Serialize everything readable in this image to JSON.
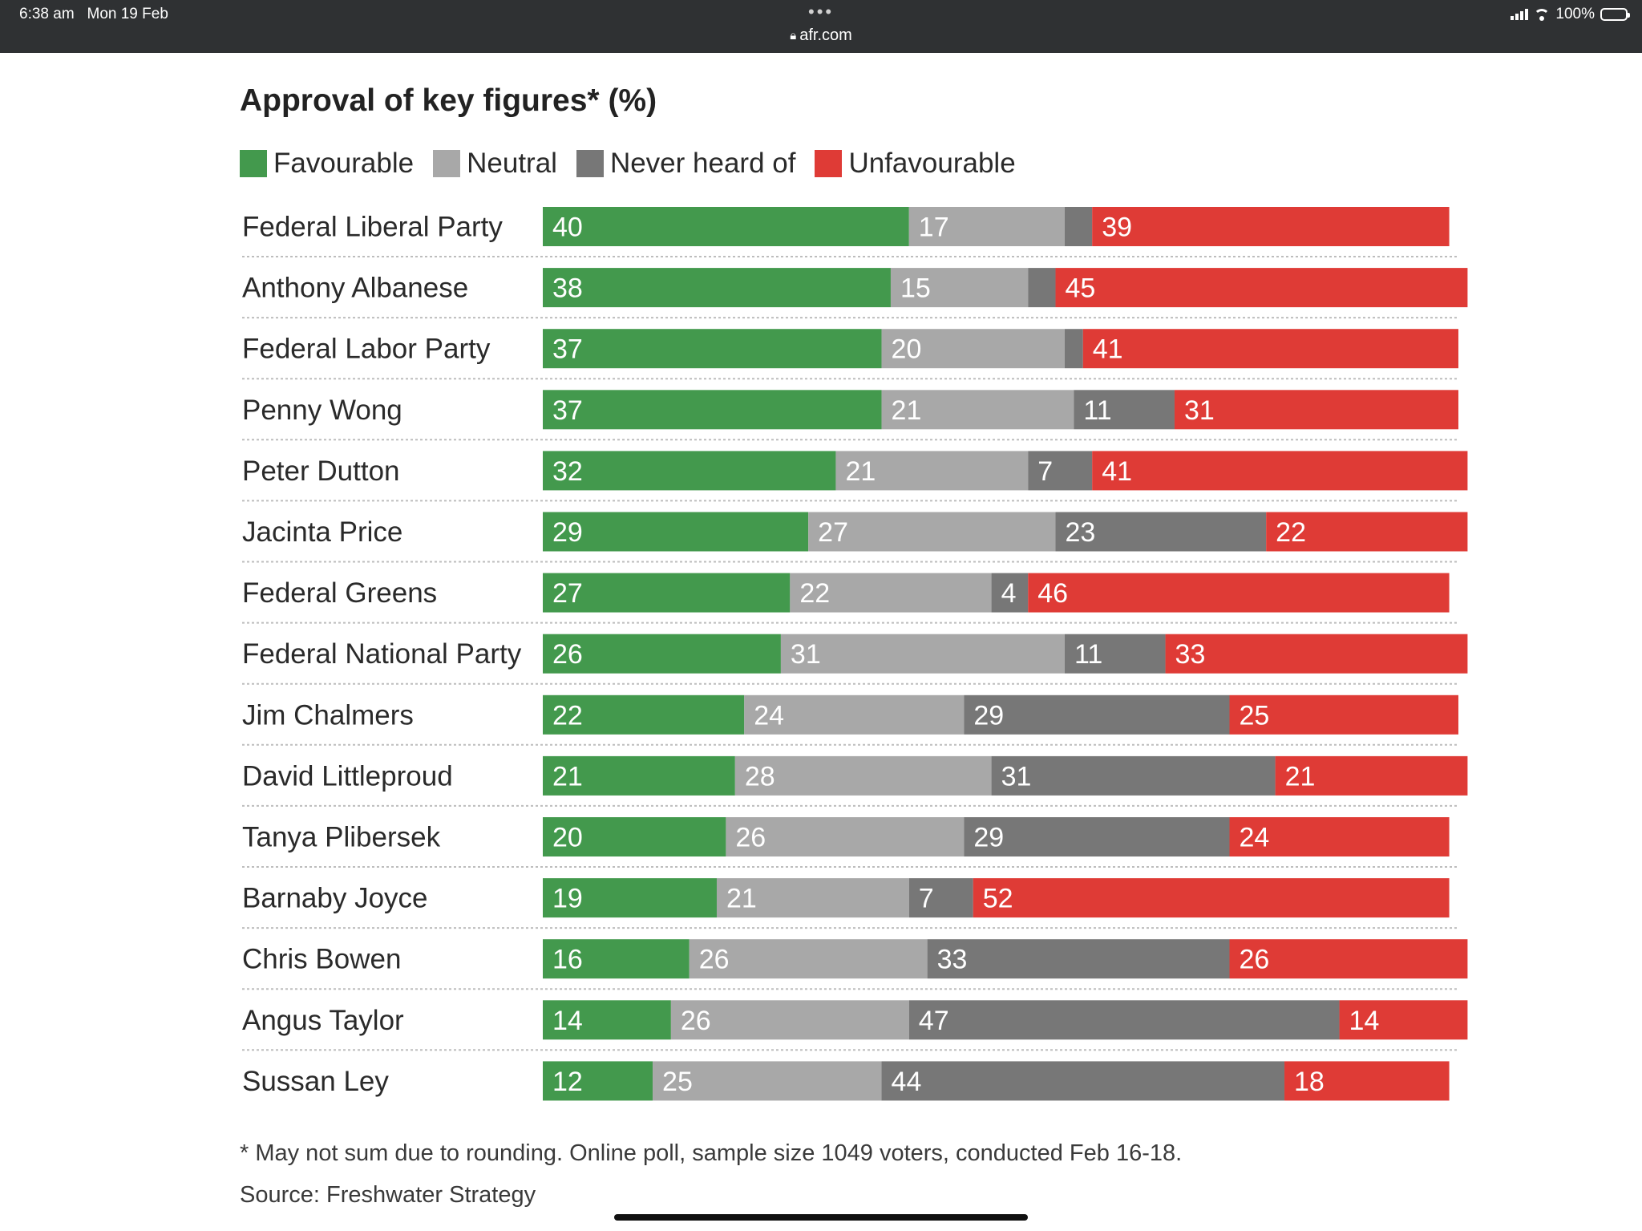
{
  "status_bar": {
    "time": "6:38 am",
    "date": "Mon 19 Feb",
    "url": "afr.com",
    "battery": "100%",
    "battery_level": 1.0
  },
  "chart_data": {
    "type": "bar",
    "orientation": "horizontal",
    "stacked": true,
    "title": "Approval of key figures* (%)",
    "xlabel": "",
    "ylabel": "",
    "legend_position": "top",
    "grid": false,
    "categories": [
      "Federal Liberal Party",
      "Anthony Albanese",
      "Federal Labor Party",
      "Penny Wong",
      "Peter Dutton",
      "Jacinta Price",
      "Federal Greens",
      "Federal National Party",
      "Jim Chalmers",
      "David Littleproud",
      "Tanya Plibersek",
      "Barnaby Joyce",
      "Chris Bowen",
      "Angus Taylor",
      "Sussan Ley"
    ],
    "series": [
      {
        "name": "Favourable",
        "color": "#43994d",
        "values": [
          40,
          38,
          37,
          37,
          32,
          29,
          27,
          26,
          22,
          21,
          20,
          19,
          16,
          14,
          12
        ]
      },
      {
        "name": "Neutral",
        "color": "#a8a8a8",
        "values": [
          17,
          15,
          20,
          21,
          21,
          27,
          22,
          31,
          24,
          28,
          26,
          21,
          26,
          26,
          25
        ]
      },
      {
        "name": "Never heard of",
        "color": "#777777",
        "values": [
          3,
          3,
          2,
          11,
          7,
          23,
          4,
          11,
          29,
          31,
          29,
          7,
          33,
          47,
          44
        ]
      },
      {
        "name": "Unfavourable",
        "color": "#df3b36",
        "values": [
          39,
          45,
          41,
          31,
          41,
          22,
          46,
          33,
          25,
          21,
          24,
          52,
          26,
          14,
          18
        ]
      }
    ],
    "labels": [
      [
        "40",
        "17",
        "",
        "39"
      ],
      [
        "38",
        "15",
        "",
        "45"
      ],
      [
        "37",
        "20",
        "",
        "41"
      ],
      [
        "37",
        "21",
        "11",
        "31"
      ],
      [
        "32",
        "21",
        "7",
        "41"
      ],
      [
        "29",
        "27",
        "23",
        "22"
      ],
      [
        "27",
        "22",
        "4",
        "46"
      ],
      [
        "26",
        "31",
        "11",
        "33"
      ],
      [
        "22",
        "24",
        "29",
        "25"
      ],
      [
        "21",
        "28",
        "31",
        "21"
      ],
      [
        "20",
        "26",
        "29",
        "24"
      ],
      [
        "19",
        "21",
        "7",
        "52"
      ],
      [
        "16",
        "26",
        "33",
        "26"
      ],
      [
        "14",
        "26",
        "47",
        "14"
      ],
      [
        "12",
        "25",
        "44",
        "18"
      ]
    ]
  },
  "notes": {
    "footnote": "* May not sum due to rounding. Online poll, sample size 1049 voters, conducted Feb 16-18.",
    "source": "Source: Freshwater Strategy"
  }
}
